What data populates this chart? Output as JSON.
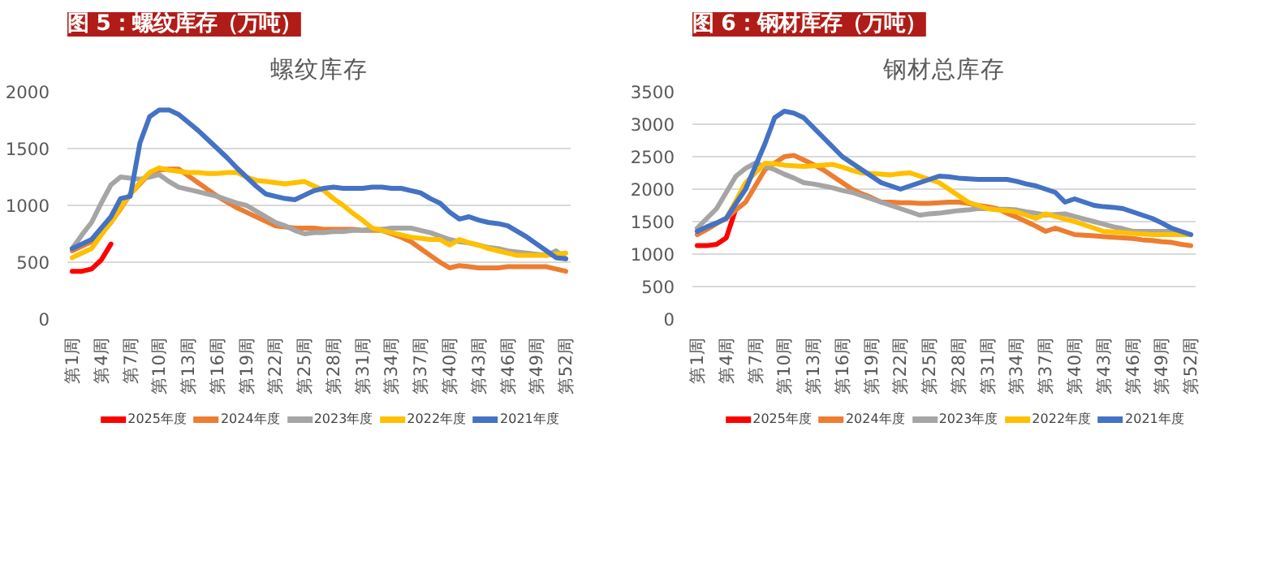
{
  "chart_data": [
    {
      "type": "line",
      "title": "图 5：螺纹库存（万吨）",
      "subtitle": "螺纹库存",
      "ylim": [
        0,
        2000
      ],
      "yticks": [
        0,
        500,
        1000,
        1500,
        2000
      ],
      "categories": [
        "第1周",
        null,
        null,
        "第4周",
        null,
        null,
        "第7周",
        null,
        null,
        "第10周",
        null,
        null,
        "第13周",
        null,
        null,
        "第16周",
        null,
        null,
        "第19周",
        null,
        null,
        "第22周",
        null,
        null,
        "第25周",
        null,
        null,
        "第28周",
        null,
        null,
        "第31周",
        null,
        null,
        "第34周",
        null,
        null,
        "第37周",
        null,
        null,
        "第40周",
        null,
        null,
        "第43周",
        null,
        null,
        "第46周",
        null,
        null,
        "第49周",
        null,
        null,
        "第52周"
      ],
      "grid": "y",
      "legend": "bottom",
      "series": [
        {
          "name": "2025年度",
          "color": "#ff0000",
          "values": [
            420,
            420,
            440,
            520,
            660,
            null,
            null,
            null,
            null,
            null,
            null,
            null,
            null,
            null,
            null,
            null,
            null,
            null,
            null,
            null,
            null,
            null,
            null,
            null,
            null,
            null,
            null,
            null,
            null,
            null,
            null,
            null,
            null,
            null,
            null,
            null,
            null,
            null,
            null,
            null,
            null,
            null,
            null,
            null,
            null,
            null,
            null,
            null,
            null,
            null,
            null,
            null
          ]
        },
        {
          "name": "2024年度",
          "color": "#ed7d31",
          "values": [
            600,
            640,
            680,
            760,
            850,
            970,
            1100,
            1190,
            1280,
            1310,
            1320,
            1320,
            1260,
            1200,
            1140,
            1080,
            1030,
            980,
            940,
            900,
            860,
            820,
            810,
            800,
            800,
            800,
            790,
            790,
            790,
            790,
            780,
            780,
            780,
            750,
            720,
            680,
            620,
            560,
            500,
            450,
            470,
            460,
            450,
            450,
            450,
            460,
            460,
            460,
            460,
            460,
            440,
            420
          ]
        },
        {
          "name": "2023年度",
          "color": "#a5a5a5",
          "values": [
            620,
            740,
            850,
            1020,
            1180,
            1250,
            1240,
            1230,
            1250,
            1270,
            1210,
            1160,
            1140,
            1120,
            1100,
            1080,
            1050,
            1020,
            1000,
            950,
            900,
            850,
            820,
            780,
            750,
            760,
            760,
            770,
            770,
            780,
            780,
            790,
            790,
            800,
            800,
            800,
            780,
            760,
            730,
            700,
            680,
            670,
            650,
            630,
            620,
            600,
            590,
            580,
            570,
            560,
            600,
            530
          ]
        },
        {
          "name": "2022年度",
          "color": "#ffc000",
          "values": [
            540,
            580,
            620,
            740,
            850,
            980,
            1100,
            1200,
            1290,
            1330,
            1310,
            1300,
            1290,
            1290,
            1280,
            1280,
            1290,
            1290,
            1250,
            1220,
            1210,
            1200,
            1190,
            1200,
            1210,
            1170,
            1130,
            1060,
            1000,
            930,
            870,
            800,
            780,
            760,
            740,
            720,
            710,
            700,
            700,
            650,
            700,
            670,
            650,
            620,
            600,
            580,
            560,
            560,
            560,
            560,
            570,
            580
          ]
        },
        {
          "name": "2021年度",
          "color": "#4472c4",
          "values": [
            620,
            660,
            700,
            800,
            900,
            1060,
            1080,
            1550,
            1780,
            1840,
            1840,
            1800,
            1730,
            1660,
            1580,
            1500,
            1420,
            1330,
            1250,
            1170,
            1100,
            1080,
            1060,
            1050,
            1090,
            1130,
            1150,
            1160,
            1150,
            1150,
            1150,
            1160,
            1160,
            1150,
            1150,
            1130,
            1110,
            1060,
            1020,
            940,
            880,
            900,
            870,
            850,
            840,
            820,
            770,
            720,
            660,
            600,
            540,
            530
          ]
        }
      ]
    },
    {
      "type": "line",
      "title": "图 6：钢材库存（万吨）",
      "subtitle": "钢材总库存",
      "ylim": [
        0,
        3500
      ],
      "yticks": [
        0,
        500,
        1000,
        1500,
        2000,
        2500,
        3000,
        3500
      ],
      "categories": [
        "第1周",
        null,
        null,
        "第4周",
        null,
        null,
        "第7周",
        null,
        null,
        "第10周",
        null,
        null,
        "第13周",
        null,
        null,
        "第16周",
        null,
        null,
        "第19周",
        null,
        null,
        "第22周",
        null,
        null,
        "第25周",
        null,
        null,
        "第28周",
        null,
        null,
        "第31周",
        null,
        null,
        "第34周",
        null,
        null,
        "第37周",
        null,
        null,
        "第40周",
        null,
        null,
        "第43周",
        null,
        null,
        "第46周",
        null,
        null,
        "第49周",
        null,
        null,
        "第52周"
      ],
      "grid": "y",
      "legend": "bottom",
      "series": [
        {
          "name": "2025年度",
          "color": "#ff0000",
          "values": [
            1130,
            1130,
            1150,
            1250,
            1700,
            null,
            null,
            null,
            null,
            null,
            null,
            null,
            null,
            null,
            null,
            null,
            null,
            null,
            null,
            null,
            null,
            null,
            null,
            null,
            null,
            null,
            null,
            null,
            null,
            null,
            null,
            null,
            null,
            null,
            null,
            null,
            null,
            null,
            null,
            null,
            null,
            null,
            null,
            null,
            null,
            null,
            null,
            null,
            null,
            null,
            null,
            null
          ]
        },
        {
          "name": "2024年度",
          "color": "#ed7d31",
          "values": [
            1300,
            1380,
            1470,
            1550,
            1680,
            1800,
            2050,
            2300,
            2400,
            2500,
            2520,
            2450,
            2380,
            2300,
            2200,
            2100,
            2000,
            1930,
            1870,
            1800,
            1800,
            1790,
            1790,
            1780,
            1780,
            1790,
            1800,
            1800,
            1780,
            1750,
            1730,
            1700,
            1630,
            1570,
            1500,
            1430,
            1350,
            1400,
            1350,
            1300,
            1290,
            1280,
            1270,
            1260,
            1250,
            1240,
            1220,
            1210,
            1190,
            1180,
            1150,
            1130
          ]
        },
        {
          "name": "2023年度",
          "color": "#a5a5a5",
          "values": [
            1400,
            1550,
            1700,
            1950,
            2200,
            2320,
            2400,
            2350,
            2300,
            2230,
            2170,
            2100,
            2080,
            2050,
            2020,
            1980,
            1950,
            1900,
            1850,
            1800,
            1750,
            1700,
            1650,
            1600,
            1620,
            1630,
            1650,
            1670,
            1680,
            1700,
            1700,
            1690,
            1690,
            1680,
            1650,
            1630,
            1600,
            1610,
            1620,
            1580,
            1540,
            1500,
            1460,
            1420,
            1390,
            1350,
            1350,
            1350,
            1350,
            1350,
            1330,
            1300
          ]
        },
        {
          "name": "2022年度",
          "color": "#ffc000",
          "values": [
            null,
            null,
            1480,
            1550,
            1820,
            2100,
            2250,
            2400,
            2390,
            2370,
            2360,
            2350,
            2360,
            2370,
            2380,
            2340,
            2290,
            2250,
            2240,
            2230,
            2220,
            2240,
            2250,
            2200,
            2150,
            2100,
            2000,
            1900,
            1800,
            1750,
            1700,
            1680,
            1670,
            1650,
            1600,
            1550,
            1620,
            1580,
            1540,
            1500,
            1450,
            1400,
            1350,
            1340,
            1330,
            1320,
            1310,
            1300,
            1300,
            1300,
            1300,
            1300
          ]
        },
        {
          "name": "2021年度",
          "color": "#4472c4",
          "values": [
            1350,
            1420,
            1480,
            1550,
            1780,
            2000,
            2350,
            2700,
            3100,
            3200,
            3170,
            3100,
            2950,
            2800,
            2650,
            2500,
            2400,
            2300,
            2200,
            2100,
            2050,
            2000,
            2050,
            2100,
            2150,
            2200,
            2190,
            2170,
            2160,
            2150,
            2150,
            2150,
            2150,
            2120,
            2080,
            2050,
            2000,
            1950,
            1800,
            1850,
            1800,
            1750,
            1730,
            1720,
            1700,
            1650,
            1600,
            1550,
            1480,
            1400,
            1350,
            1300
          ]
        }
      ]
    }
  ]
}
